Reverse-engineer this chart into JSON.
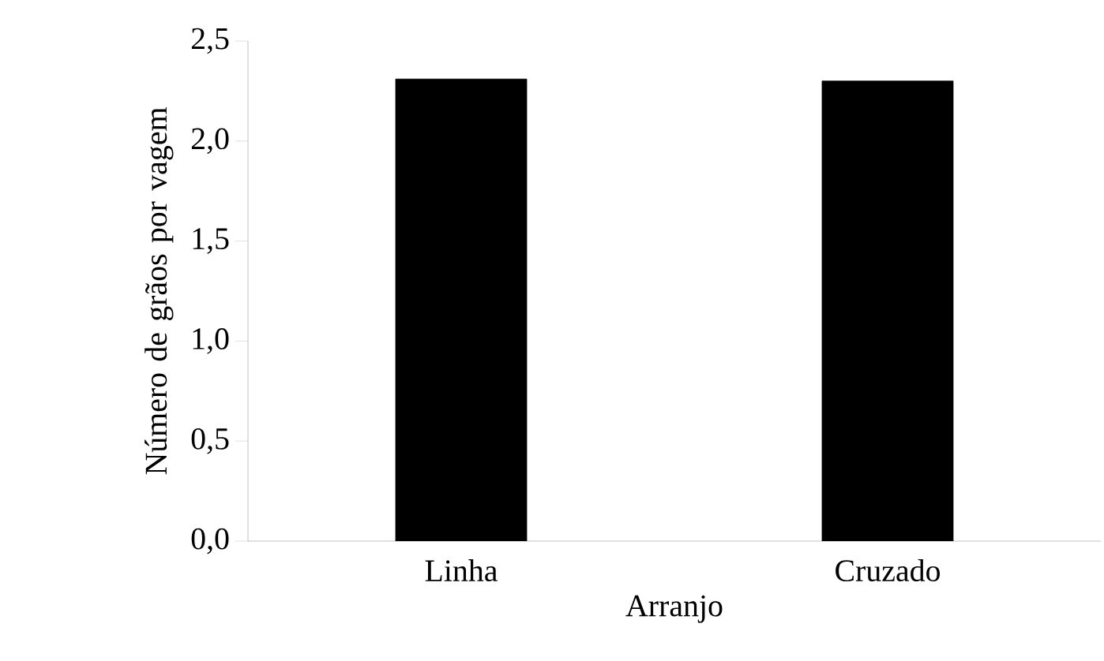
{
  "chart_data": {
    "type": "bar",
    "xlabel": "Arranjo",
    "ylabel": "Número de grãos por vagem",
    "categories": [
      "Linha",
      "Cruzado"
    ],
    "values": [
      2.31,
      2.3
    ],
    "color": "#000000",
    "ylim": [
      0,
      2.5
    ],
    "yticks": [
      {
        "value": 0,
        "label": "0,0"
      },
      {
        "value": 0.5,
        "label": "0,5"
      },
      {
        "value": 1,
        "label": "1,0"
      },
      {
        "value": 1.5,
        "label": "1,5"
      },
      {
        "value": 2,
        "label": "2,0"
      },
      {
        "value": 2.5,
        "label": "2,5"
      }
    ],
    "grid": false
  }
}
